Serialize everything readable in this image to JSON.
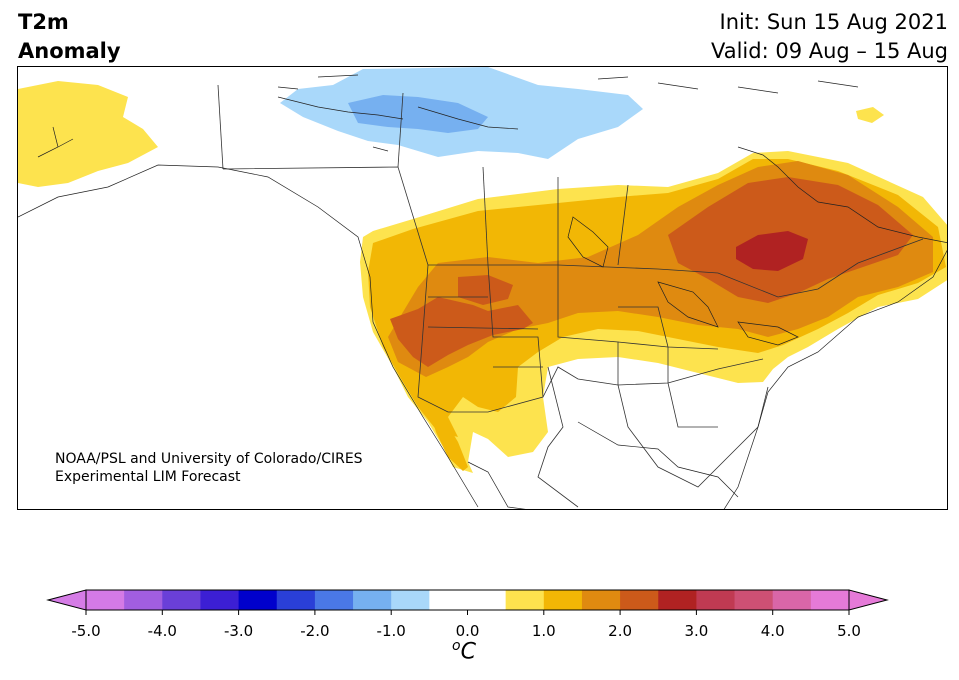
{
  "header": {
    "title_line1": "T2m",
    "title_line2": "Anomaly",
    "init": "Init: Sun 15 Aug 2021",
    "valid": "Valid: 09 Aug – 15 Aug"
  },
  "credit": {
    "line1": "NOAA/PSL and University of Colorado/CIRES",
    "line2": "Experimental LIM Forecast"
  },
  "colorbar": {
    "unit_base": "C",
    "unit_sup": "o",
    "ticks": [
      "-5.0",
      "-4.0",
      "-3.0",
      "-2.0",
      "-1.0",
      "0.0",
      "1.0",
      "2.0",
      "3.0",
      "4.0",
      "5.0"
    ],
    "tick_values": [
      -5,
      -4,
      -3,
      -2,
      -1,
      0,
      1,
      2,
      3,
      4,
      5
    ],
    "range": [
      -5,
      5
    ],
    "step": 0.5,
    "under_color": "#d57ce6",
    "over_color": "#e57ad8",
    "colors": [
      "#d47ae6",
      "#a25ee0",
      "#6a3fd8",
      "#3c1fd4",
      "#0000cc",
      "#2a3fd8",
      "#4a78e6",
      "#76b0f0",
      "#a9d8fa",
      "#ffffff",
      "#ffffff",
      "#fde34e",
      "#f2b705",
      "#df8a10",
      "#cc5a1a",
      "#b02222",
      "#c03a52",
      "#cd5074",
      "#d966a8",
      "#e57ad8"
    ]
  },
  "map": {
    "region": "North America",
    "anomaly_colors": {
      "cold_light": "#a9d8fa",
      "cold_mid": "#76b0f0",
      "warm_05": "#fde34e",
      "warm_10": "#f2b705",
      "warm_15": "#df8a10",
      "warm_20": "#cc5a1a",
      "warm_25": "#b02222"
    }
  }
}
